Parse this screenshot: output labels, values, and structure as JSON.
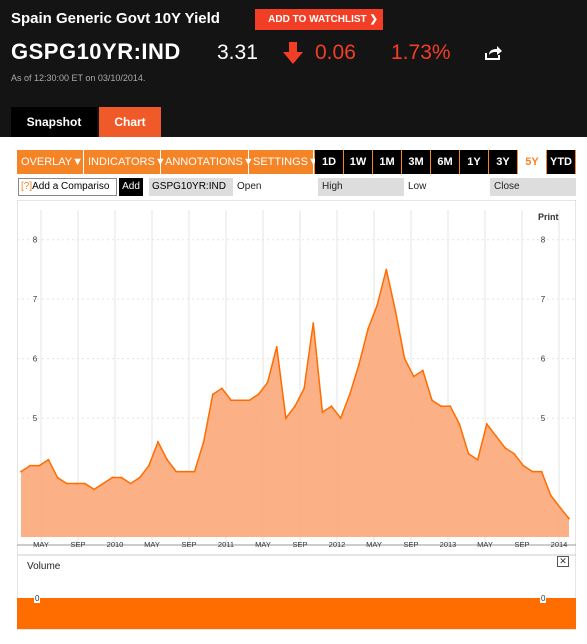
{
  "header": {
    "title": "Spain Generic Govt 10Y Yield",
    "watchlist_label": "ADD TO WATCHLIST",
    "ticker": "GSPG10YR:IND",
    "price": "3.31",
    "change": "0.06",
    "percent": "1.73%",
    "as_of": "As of 12:30:00 ET on 03/10/2014."
  },
  "tabs": {
    "snapshot": "Snapshot",
    "chart": "Chart",
    "active": "Chart"
  },
  "toolbar": {
    "menus": [
      "OVERLAY",
      "INDICATORS",
      "ANNOTATIONS",
      "SETTINGS"
    ],
    "ranges": [
      "1D",
      "1W",
      "1M",
      "3M",
      "6M",
      "1Y",
      "3Y",
      "5Y",
      "YTD"
    ],
    "active_range": "5Y"
  },
  "controls": {
    "compare_placeholder": "Add a Compariso",
    "compare_marker": "[?]",
    "add_label": "Add",
    "symbol": "GSPG10YR:IND",
    "open_label": "Open",
    "high_label": "High",
    "low_label": "Low",
    "close_label": "Close"
  },
  "print_label": "Print",
  "volume": {
    "label": "Volume",
    "close_icon": "close-icon",
    "value": 0
  },
  "colors": {
    "accent": "#f58426",
    "down": "#f23e25",
    "header_bg": "#141414",
    "area_fill": "#fba978",
    "area_line": "#ff6c00"
  },
  "chart_data": {
    "type": "area",
    "series": [
      {
        "name": "GSPG10YR:IND",
        "points": [
          [
            "2009-03",
            4.1
          ],
          [
            "2009-04",
            4.2
          ],
          [
            "2009-05",
            4.2
          ],
          [
            "2009-06",
            4.3
          ],
          [
            "2009-07",
            4.0
          ],
          [
            "2009-08",
            3.9
          ],
          [
            "2009-09",
            3.9
          ],
          [
            "2009-10",
            3.9
          ],
          [
            "2009-11",
            3.8
          ],
          [
            "2009-12",
            3.9
          ],
          [
            "2010-01",
            4.0
          ],
          [
            "2010-02",
            4.0
          ],
          [
            "2010-03",
            3.9
          ],
          [
            "2010-04",
            4.0
          ],
          [
            "2010-05",
            4.2
          ],
          [
            "2010-06",
            4.6
          ],
          [
            "2010-07",
            4.3
          ],
          [
            "2010-08",
            4.1
          ],
          [
            "2010-09",
            4.1
          ],
          [
            "2010-10",
            4.1
          ],
          [
            "2010-11",
            4.6
          ],
          [
            "2010-12",
            5.4
          ],
          [
            "2011-01",
            5.5
          ],
          [
            "2011-02",
            5.3
          ],
          [
            "2011-03",
            5.3
          ],
          [
            "2011-04",
            5.3
          ],
          [
            "2011-05",
            5.4
          ],
          [
            "2011-06",
            5.6
          ],
          [
            "2011-07",
            6.2
          ],
          [
            "2011-08",
            5.0
          ],
          [
            "2011-09",
            5.2
          ],
          [
            "2011-10",
            5.5
          ],
          [
            "2011-11",
            6.6
          ],
          [
            "2011-12",
            5.1
          ],
          [
            "2012-01",
            5.2
          ],
          [
            "2012-02",
            5.0
          ],
          [
            "2012-03",
            5.4
          ],
          [
            "2012-04",
            5.9
          ],
          [
            "2012-05",
            6.5
          ],
          [
            "2012-06",
            6.9
          ],
          [
            "2012-07",
            7.5
          ],
          [
            "2012-08",
            6.8
          ],
          [
            "2012-09",
            6.0
          ],
          [
            "2012-10",
            5.7
          ],
          [
            "2012-11",
            5.8
          ],
          [
            "2012-12",
            5.3
          ],
          [
            "2013-01",
            5.2
          ],
          [
            "2013-02",
            5.2
          ],
          [
            "2013-03",
            4.9
          ],
          [
            "2013-04",
            4.4
          ],
          [
            "2013-05",
            4.3
          ],
          [
            "2013-06",
            4.9
          ],
          [
            "2013-07",
            4.7
          ],
          [
            "2013-08",
            4.5
          ],
          [
            "2013-09",
            4.4
          ],
          [
            "2013-10",
            4.2
          ],
          [
            "2013-11",
            4.1
          ],
          [
            "2013-12",
            4.1
          ],
          [
            "2014-01",
            3.7
          ],
          [
            "2014-02",
            3.5
          ],
          [
            "2014-03",
            3.31
          ]
        ]
      }
    ],
    "x_ticks": [
      "MAY",
      "SEP",
      "2010",
      "MAY",
      "SEP",
      "2011",
      "MAY",
      "SEP",
      "2012",
      "MAY",
      "SEP",
      "2013",
      "MAY",
      "SEP",
      "2014"
    ],
    "y_ticks": [
      5,
      6,
      7,
      8
    ],
    "ylim": [
      3,
      8.5
    ],
    "grid": true
  }
}
